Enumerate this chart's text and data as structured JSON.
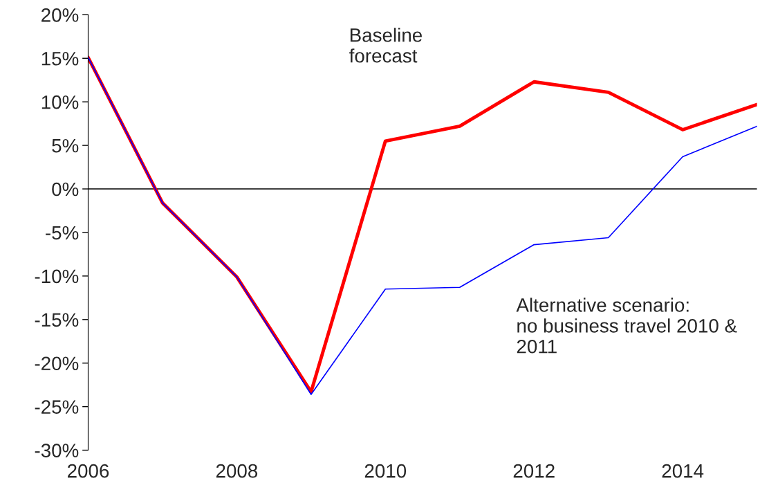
{
  "chart_data": {
    "type": "line",
    "x": [
      2006,
      2007,
      2008,
      2009,
      2010,
      2011,
      2012,
      2013,
      2014,
      2015
    ],
    "series": [
      {
        "color": "#0000ff",
        "values": [
          15.1,
          -1.6,
          -10.1,
          -23.6,
          -11.5,
          -11.3,
          -6.4,
          -5.6,
          3.7,
          7.2
        ]
      },
      {
        "color": "#ff0000",
        "values": [
          15.1,
          -1.6,
          -10.1,
          -23.3,
          5.5,
          7.2,
          12.3,
          11.1,
          6.8,
          9.7
        ]
      }
    ],
    "xlim": [
      2006,
      2015
    ],
    "xticks": [
      2006,
      2008,
      2010,
      2012,
      2014
    ],
    "ylim": [
      -30,
      20
    ],
    "yticks": [
      {
        "value": -30,
        "label": "-30%"
      },
      {
        "value": -25,
        "label": "-25%"
      },
      {
        "value": -20,
        "label": "-20%"
      },
      {
        "value": -15,
        "label": "-15%"
      },
      {
        "value": -10,
        "label": "-10%"
      },
      {
        "value": -5,
        "label": "-5%"
      },
      {
        "value": 0,
        "label": "0%"
      },
      {
        "value": 5,
        "label": "5%"
      },
      {
        "value": 10,
        "label": "10%"
      },
      {
        "value": 15,
        "label": "15%"
      },
      {
        "value": 20,
        "label": "20%"
      }
    ],
    "ref_lines": [
      {
        "axis": "y",
        "value": 0,
        "color": "#000000"
      }
    ],
    "annotations": [
      "Baseline\nforecast",
      "Alternative scenario:\nno business travel 2010 &\n2011"
    ],
    "grid": false,
    "marker": "none",
    "line_style": "solid"
  }
}
